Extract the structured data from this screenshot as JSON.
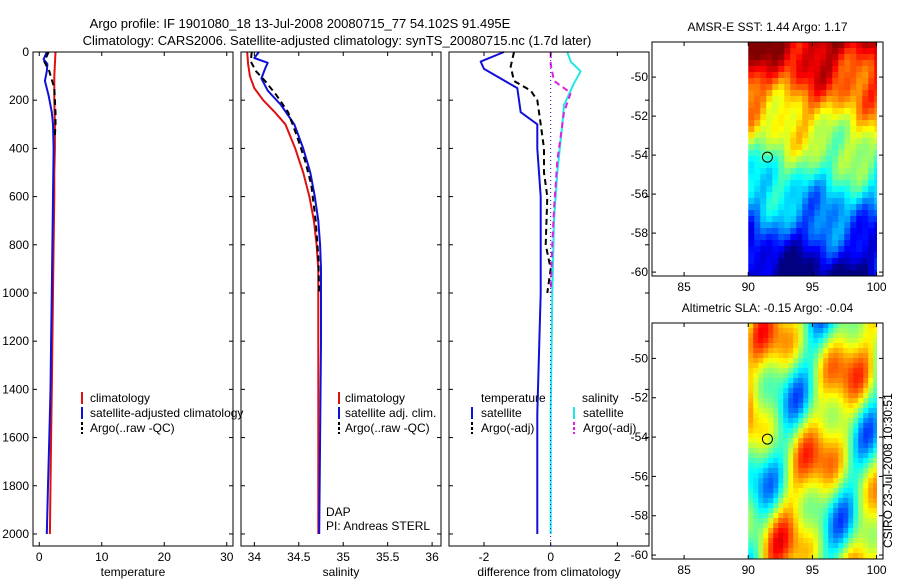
{
  "header": {
    "line1": "Argo profile: IF 1901080_18 13-Jul-2008 20080715_77 54.102S 91.495E",
    "line2": "Climatology: CARS2006. Satellite-adjusted climatology: synTS_20080715.nc (1.7d later)"
  },
  "colors": {
    "climatology": "#e01010",
    "satellite": "#1010d8",
    "argo": "#000000",
    "sat_salinity": "#20e8e8",
    "argo_salinity": "#e020e0"
  },
  "chart_data": [
    {
      "type": "line",
      "id": "temperature",
      "xlabel": "temperature",
      "xlim": [
        -1,
        31
      ],
      "ylim": [
        2050,
        0
      ],
      "xticks": [
        0,
        10,
        20,
        30
      ],
      "xtick_labels": [
        "0",
        "10",
        "20",
        "30"
      ],
      "yticks": [
        0,
        200,
        400,
        600,
        800,
        1000,
        1200,
        1400,
        1600,
        1800,
        2000
      ],
      "ytick_labels": [
        "0",
        "200",
        "400",
        "600",
        "800",
        "1000",
        "1200",
        "1400",
        "1600",
        "1800",
        "2000"
      ],
      "legend": [
        "climatology",
        "satellite-adjusted climatology",
        "Argo(..raw -QC)"
      ],
      "series": [
        {
          "name": "climatology",
          "style": "solid",
          "color_key": "climatology",
          "x": [
            2.6,
            2.5,
            2.4,
            2.4,
            2.5,
            2.5,
            2.4,
            2.4,
            2.3,
            2.2,
            2.1,
            2.0,
            1.9,
            1.8,
            1.7
          ],
          "y": [
            0,
            50,
            100,
            200,
            300,
            400,
            500,
            600,
            800,
            1000,
            1200,
            1400,
            1600,
            1800,
            2000
          ]
        },
        {
          "name": "satellite-adjusted climatology",
          "style": "solid",
          "color_key": "satellite",
          "x": [
            1.2,
            0.7,
            1.3,
            1.2,
            0.9,
            1.5,
            2.0,
            2.2,
            2.3,
            2.2,
            2.1,
            2.0,
            1.9,
            1.8,
            1.6,
            1.4,
            1.3,
            1.2
          ],
          "y": [
            0,
            30,
            50,
            80,
            120,
            180,
            250,
            300,
            400,
            600,
            800,
            1000,
            1200,
            1400,
            1600,
            1800,
            1900,
            2000
          ]
        },
        {
          "name": "Argo(..raw -QC)",
          "style": "dashed",
          "color_key": "argo",
          "x": [
            1.5,
            0.8,
            1.6,
            2.4,
            2.5,
            2.6,
            2.6,
            2.5
          ],
          "y": [
            0,
            40,
            80,
            150,
            200,
            250,
            300,
            350
          ]
        }
      ]
    },
    {
      "type": "line",
      "id": "salinity",
      "xlabel": "salinity",
      "xlim": [
        33.85,
        36.1
      ],
      "ylim": [
        2050,
        0
      ],
      "xticks": [
        34,
        34.5,
        35,
        35.5,
        36
      ],
      "xtick_labels": [
        "34",
        "34.5",
        "35",
        "35.5",
        "36"
      ],
      "legend": [
        "climatology",
        "satellite adj. clim.",
        "Argo(..raw -QC)"
      ],
      "annotation": [
        "DAP",
        "PI: Andreas STERL"
      ],
      "series": [
        {
          "name": "climatology",
          "style": "solid",
          "color_key": "climatology",
          "x": [
            33.92,
            33.93,
            33.95,
            34.0,
            34.1,
            34.23,
            34.35,
            34.46,
            34.55,
            34.62,
            34.67,
            34.7,
            34.72,
            34.72,
            34.72,
            34.72,
            34.72
          ],
          "y": [
            0,
            50,
            100,
            150,
            200,
            250,
            300,
            400,
            500,
            600,
            700,
            800,
            900,
            1000,
            1200,
            1600,
            2000
          ]
        },
        {
          "name": "satellite adj. clim.",
          "style": "solid",
          "color_key": "satellite",
          "x": [
            34.05,
            34.0,
            34.15,
            34.12,
            34.08,
            34.15,
            34.3,
            34.45,
            34.55,
            34.63,
            34.68,
            34.72,
            34.74,
            34.75,
            34.75,
            34.74,
            34.73
          ],
          "y": [
            0,
            25,
            45,
            70,
            110,
            160,
            220,
            300,
            400,
            500,
            600,
            700,
            800,
            900,
            1200,
            1600,
            2000
          ]
        },
        {
          "name": "Argo(..raw -QC)",
          "style": "dashed",
          "color_key": "argo",
          "x": [
            33.97,
            33.96,
            34.02,
            34.12,
            34.25,
            34.38,
            34.48,
            34.57,
            34.64,
            34.69,
            34.72,
            34.73
          ],
          "y": [
            0,
            40,
            80,
            120,
            180,
            250,
            350,
            450,
            550,
            700,
            850,
            1000
          ]
        }
      ]
    },
    {
      "type": "line",
      "id": "difference",
      "xlabel": "difference from climatology",
      "xlim": [
        -3.05,
        2.95
      ],
      "ylim": [
        2050,
        0
      ],
      "xticks": [
        -2,
        0,
        2
      ],
      "xtick_labels": [
        "-2",
        "0",
        "2"
      ],
      "legend_titles": [
        "temperature",
        "salinity"
      ],
      "legend": [
        "satellite",
        "Argo(-adj)",
        "satellite",
        "Argo(-adj)"
      ],
      "series": [
        {
          "name": "temperature satellite",
          "style": "solid",
          "color_key": "satellite",
          "x": [
            -1.4,
            -2.1,
            -2.0,
            -1.0,
            -0.9,
            -0.4,
            -0.4,
            -0.3,
            -0.3,
            -0.4,
            -0.4
          ],
          "y": [
            0,
            40,
            70,
            150,
            250,
            300,
            400,
            600,
            1000,
            1500,
            2000
          ]
        },
        {
          "name": "temperature Argo(-adj)",
          "style": "dashed",
          "color_key": "argo",
          "x": [
            -1.1,
            -1.2,
            -1.1,
            -0.6,
            -0.4,
            -0.3,
            -0.2,
            -0.2,
            -0.1,
            -0.15,
            0.0,
            -0.1
          ],
          "y": [
            0,
            60,
            120,
            160,
            200,
            300,
            400,
            500,
            600,
            800,
            900,
            1000
          ]
        },
        {
          "name": "salinity satellite",
          "style": "solid",
          "color_key": "sat_salinity",
          "x": [
            0.5,
            0.6,
            0.9,
            0.7,
            0.4,
            0.35,
            0.2,
            0.1,
            0.05,
            0.0,
            0.0
          ],
          "y": [
            0,
            40,
            80,
            130,
            220,
            300,
            500,
            700,
            1000,
            1500,
            2000
          ]
        },
        {
          "name": "salinity Argo(-adj)",
          "style": "dashed",
          "color_key": "argo_salinity",
          "x": [
            0.0,
            0.0,
            0.1,
            0.6,
            0.4,
            0.3,
            0.2,
            0.15,
            0.1,
            0.05,
            0.0
          ],
          "y": [
            0,
            50,
            120,
            170,
            250,
            350,
            450,
            550,
            650,
            800,
            1000
          ]
        }
      ]
    },
    {
      "type": "heatmap",
      "id": "sst",
      "title": "AMSR-E SST: 1.44 Argo: 1.17",
      "xlim": [
        82.5,
        100.5
      ],
      "ylim": [
        -60.2,
        -48.2
      ],
      "xticks": [
        85,
        90,
        95,
        100
      ],
      "xtick_labels": [
        "85",
        "90",
        "95",
        "100"
      ],
      "yticks": [
        -50,
        -52,
        -54,
        -56,
        -58,
        -60
      ],
      "ytick_labels": [
        "-50",
        "-52",
        "-54",
        "-56",
        "-58",
        "-60"
      ],
      "data_extent": [
        90,
        100
      ],
      "marker": {
        "lon": 91.495,
        "lat": -54.102
      }
    },
    {
      "type": "heatmap",
      "id": "sla",
      "title": "Altimetric SLA: -0.15 Argo: -0.04",
      "xlim": [
        82.5,
        100.5
      ],
      "ylim": [
        -60.2,
        -48.2
      ],
      "xticks": [
        85,
        90,
        95,
        100
      ],
      "xtick_labels": [
        "85",
        "90",
        "95",
        "100"
      ],
      "yticks": [
        -50,
        -52,
        -54,
        -56,
        -58,
        -60
      ],
      "ytick_labels": [
        "-50",
        "-52",
        "-54",
        "-56",
        "-58",
        "-60"
      ],
      "data_extent": [
        90,
        100
      ],
      "marker": {
        "lon": 91.495,
        "lat": -54.102
      }
    }
  ],
  "footer": {
    "stamp": "CSIRO 23-Jul-2008 10:30:51"
  }
}
